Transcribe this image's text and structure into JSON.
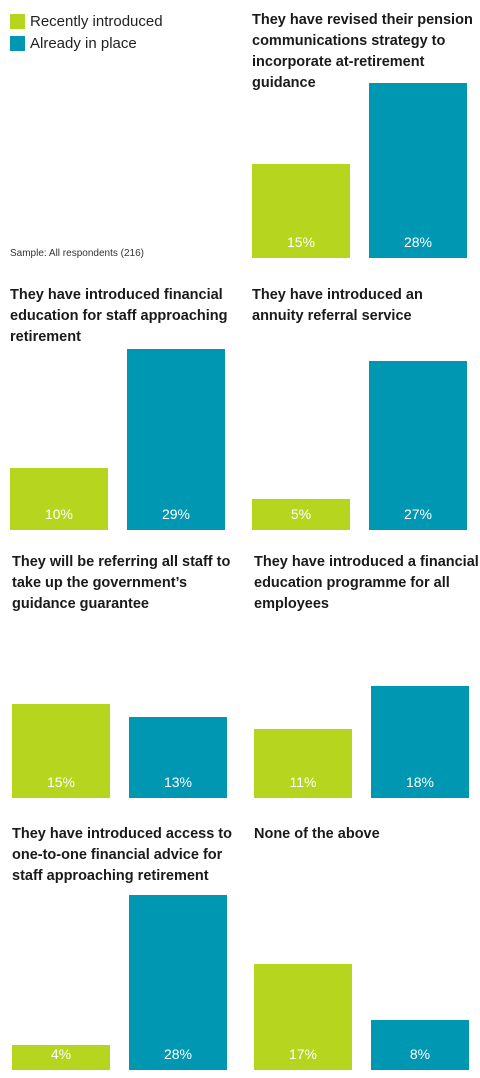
{
  "legend": {
    "recent_label": "Recently introduced",
    "place_label": "Already in place"
  },
  "colors": {
    "recent": "#b5d51e",
    "place": "#0097b2"
  },
  "sample_note": "Sample: All respondents (216)",
  "chart_data": {
    "type": "bar",
    "unit": "%",
    "series_names": [
      "Recently introduced",
      "Already in place"
    ],
    "panels": [
      {
        "title": "They have revised their pension communications strategy to incorporate at-retirement guidance",
        "values": [
          15,
          28
        ]
      },
      {
        "title": "They have introduced financial education for staff approaching retirement",
        "values": [
          10,
          29
        ]
      },
      {
        "title": "They have introduced an annuity referral service",
        "values": [
          5,
          27
        ]
      },
      {
        "title": "They will be referring all staff to take up the government’s guidance guarantee",
        "values": [
          15,
          13
        ]
      },
      {
        "title": "They have introduced a financial education programme for all employees",
        "values": [
          11,
          18
        ]
      },
      {
        "title": "They have introduced access to one-to-one financial advice for staff approaching retirement",
        "values": [
          4,
          28
        ]
      },
      {
        "title": "None of the above",
        "values": [
          17,
          8
        ]
      }
    ]
  }
}
